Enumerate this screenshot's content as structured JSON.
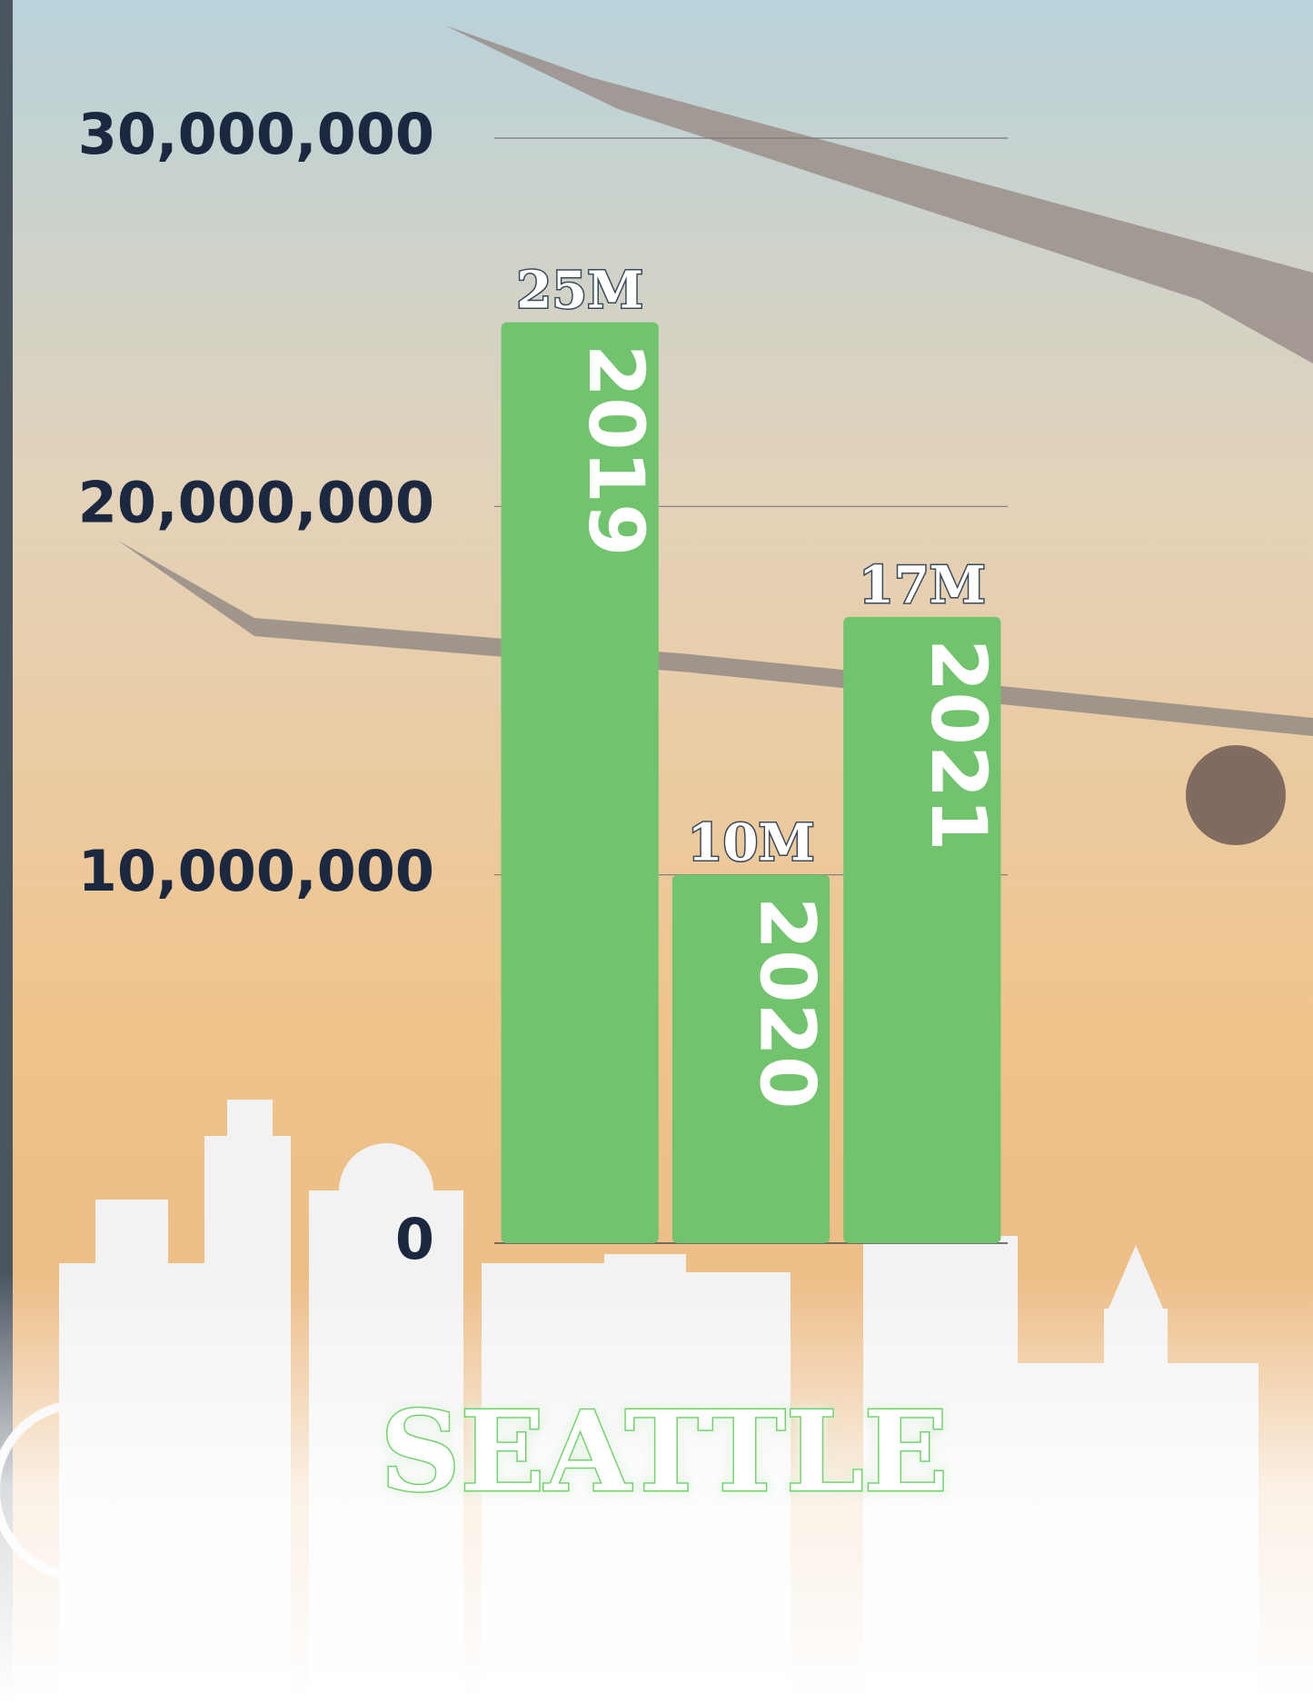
{
  "chart_data": {
    "type": "bar",
    "title": "SEATTLE",
    "categories": [
      "2019",
      "2020",
      "2021"
    ],
    "values": [
      25000000,
      10000000,
      17000000
    ],
    "value_labels": [
      "25M",
      "10M",
      "17M"
    ],
    "color": "#72c36e",
    "ylim": [
      0,
      30000000
    ],
    "yticks": [
      0,
      {
        "value": 10000000,
        "label": "10,000,000"
      },
      {
        "value": 20000000,
        "label": "20,000,000"
      },
      {
        "value": 30000000,
        "label": "30,000,000"
      }
    ],
    "grid": true
  }
}
